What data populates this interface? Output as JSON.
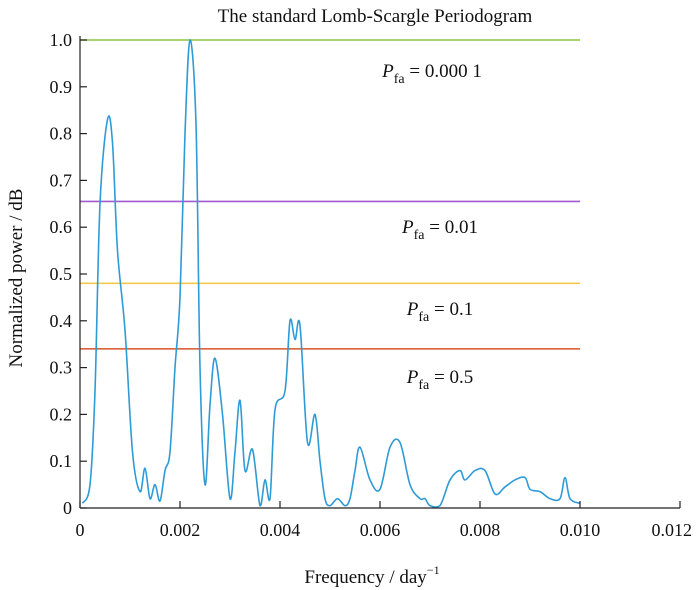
{
  "chart_data": {
    "type": "line",
    "title": "The standard Lomb-Scargle Periodogram",
    "xlabel": "Frequency / day",
    "xlabel_sup": "−1",
    "ylabel": "Normalized power / dB",
    "xlim": [
      0,
      0.012
    ],
    "ylim": [
      0,
      1.0
    ],
    "x_ticks": [
      0,
      0.002,
      0.004,
      0.006,
      0.008,
      0.01,
      0.012
    ],
    "x_tick_labels": [
      "0",
      "0.002",
      "0.004",
      "0.006",
      "0.008",
      "0.010",
      "0.012"
    ],
    "y_ticks": [
      0,
      0.1,
      0.2,
      0.3,
      0.4,
      0.5,
      0.6,
      0.7,
      0.8,
      0.9,
      1.0
    ],
    "y_tick_labels": [
      "0",
      "0.1",
      "0.2",
      "0.3",
      "0.4",
      "0.5",
      "0.6",
      "0.7",
      "0.8",
      "0.9",
      "1.0"
    ],
    "grid": false,
    "series": [
      {
        "color": "#2e9bd6",
        "x": [
          5e-05,
          0.0002,
          0.0003,
          0.0004,
          0.00055,
          0.00065,
          0.00075,
          0.0009,
          0.00105,
          0.0012,
          0.0013,
          0.0014,
          0.0015,
          0.0016,
          0.0017,
          0.0018,
          0.0019,
          0.002,
          0.0021,
          0.0022,
          0.00232,
          0.0024,
          0.0025,
          0.0026,
          0.0027,
          0.00285,
          0.003,
          0.0031,
          0.0032,
          0.0033,
          0.00345,
          0.0036,
          0.0037,
          0.0038,
          0.0039,
          0.0041,
          0.0042,
          0.0043,
          0.0044,
          0.00455,
          0.0047,
          0.0048,
          0.0049,
          0.005,
          0.00515,
          0.0053,
          0.0054,
          0.0055,
          0.0056,
          0.0058,
          0.006,
          0.0062,
          0.0064,
          0.0066,
          0.0068,
          0.0069,
          0.007,
          0.0072,
          0.0074,
          0.0076,
          0.0077,
          0.0079,
          0.0081,
          0.0083,
          0.0085,
          0.0087,
          0.0089,
          0.009,
          0.0092,
          0.0094,
          0.0096,
          0.0097,
          0.0098,
          0.01
        ],
        "y": [
          0.01,
          0.05,
          0.25,
          0.65,
          0.83,
          0.78,
          0.55,
          0.38,
          0.12,
          0.035,
          0.085,
          0.02,
          0.05,
          0.015,
          0.08,
          0.12,
          0.3,
          0.45,
          0.8,
          1.0,
          0.82,
          0.3,
          0.05,
          0.22,
          0.32,
          0.2,
          0.02,
          0.12,
          0.23,
          0.08,
          0.125,
          0.005,
          0.06,
          0.02,
          0.21,
          0.25,
          0.4,
          0.36,
          0.39,
          0.14,
          0.2,
          0.1,
          0.02,
          0.005,
          0.02,
          0.005,
          0.02,
          0.08,
          0.13,
          0.06,
          0.04,
          0.13,
          0.14,
          0.05,
          0.02,
          0.02,
          0.005,
          0.005,
          0.06,
          0.08,
          0.06,
          0.08,
          0.08,
          0.03,
          0.045,
          0.06,
          0.065,
          0.04,
          0.035,
          0.02,
          0.02,
          0.065,
          0.02,
          0.01
        ]
      }
    ],
    "threshold_lines": [
      {
        "y": 1.0,
        "color": "#8cc63f",
        "label_var": "P",
        "label_sub": "fa",
        "label_val": " = 0.000 1"
      },
      {
        "y": 0.655,
        "color": "#a35ad0",
        "label_var": "P",
        "label_sub": "fa",
        "label_val": " = 0.01"
      },
      {
        "y": 0.48,
        "color": "#f2c94c",
        "label_var": "P",
        "label_sub": "fa",
        "label_val": " = 0.1"
      },
      {
        "y": 0.34,
        "color": "#d9532a",
        "label_var": "P",
        "label_sub": "fa",
        "label_val": " = 0.5"
      }
    ],
    "colors": {
      "axis": "#222222"
    }
  }
}
